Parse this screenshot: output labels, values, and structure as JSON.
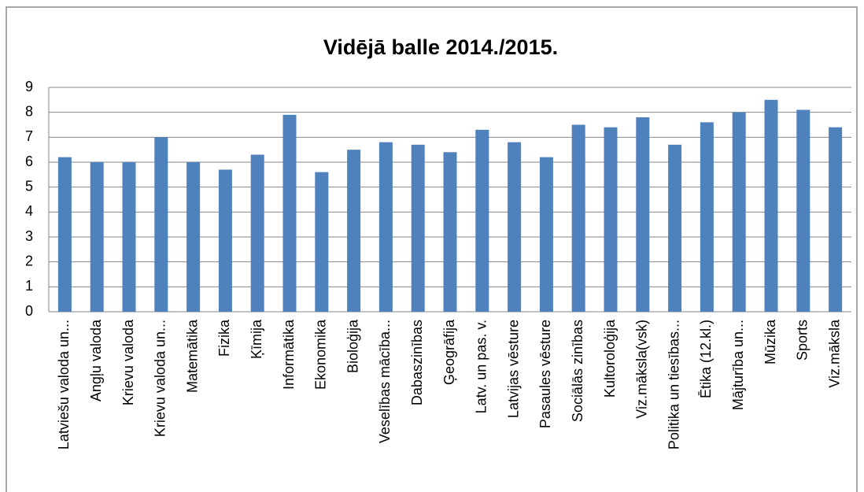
{
  "chart_data": {
    "type": "bar",
    "title": "Vidējā balle 2014./2015.",
    "categories": [
      "Latviešu valoda un...",
      "Angļu valoda",
      "Krievu valoda",
      "Krievu valoda un...",
      "Matemātika",
      "Fizika",
      "Ķīmija",
      "Informātika",
      "Ekonomika",
      "Bioloģija",
      "Veselības mācība...",
      "Dabaszinības",
      "Ģeogrāfija",
      "Latv. un pas. v.",
      "Latvijas vēsture",
      "Pasaules vēsture",
      "Sociālās zinības",
      "Kultoroloģija",
      "Viz.māksla(vsk)",
      "Politika un tiesības...",
      "Ētika (12.kl.)",
      "Mājturība un...",
      "Mūzika",
      "Sports",
      "Viz.māksla"
    ],
    "values": [
      6.2,
      6.0,
      6.0,
      7.0,
      6.0,
      5.7,
      6.3,
      7.9,
      5.6,
      6.5,
      6.8,
      6.7,
      6.4,
      7.3,
      6.8,
      6.2,
      7.5,
      7.4,
      7.8,
      6.7,
      7.6,
      8.0,
      8.5,
      8.1,
      7.4
    ],
    "color": "#4f81bd",
    "ylim": [
      0,
      9
    ],
    "yticks": [
      0,
      1,
      2,
      3,
      4,
      5,
      6,
      7,
      8,
      9
    ],
    "grid": true
  }
}
